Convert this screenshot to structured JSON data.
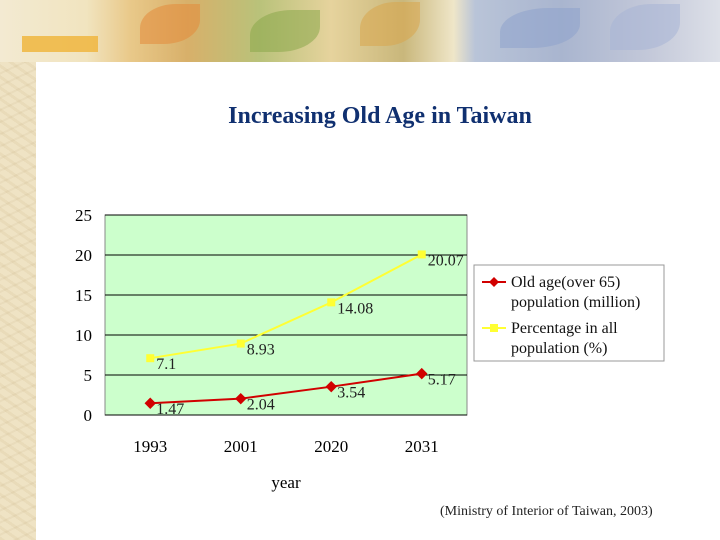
{
  "colors": {
    "series_old_age": "#d10000",
    "series_percentage": "#ffff33",
    "plot_background": "#ccffcc",
    "title": "#103070"
  },
  "chart_data": {
    "type": "line",
    "title": "Increasing Old Age in Taiwan",
    "xlabel": "year",
    "ylabel": "",
    "categories": [
      "1993",
      "2001",
      "2020",
      "2031"
    ],
    "ylim": [
      0,
      25
    ],
    "yticks": [
      "0",
      "5",
      "10",
      "15",
      "20",
      "25"
    ],
    "grid": true,
    "legend_position": "right",
    "series": [
      {
        "name": "Old age(over 65) population (million)",
        "legend_lines": [
          "Old age(over 65)",
          "population (million)"
        ],
        "values": [
          1.47,
          2.04,
          3.54,
          5.17
        ],
        "labels": [
          "1.47",
          "2.04",
          "3.54",
          "5.17"
        ],
        "marker": "diamond",
        "color": "#d10000"
      },
      {
        "name": "Percentage in all population (%)",
        "legend_lines": [
          "Percentage in all",
          "population (%)"
        ],
        "values": [
          7.1,
          8.93,
          14.08,
          20.07
        ],
        "labels": [
          "7.1",
          "8.93",
          "14.08",
          "20.07"
        ],
        "marker": "square",
        "color": "#ffff33"
      }
    ]
  },
  "source_note": "(Ministry of Interior of Taiwan, 2003)"
}
